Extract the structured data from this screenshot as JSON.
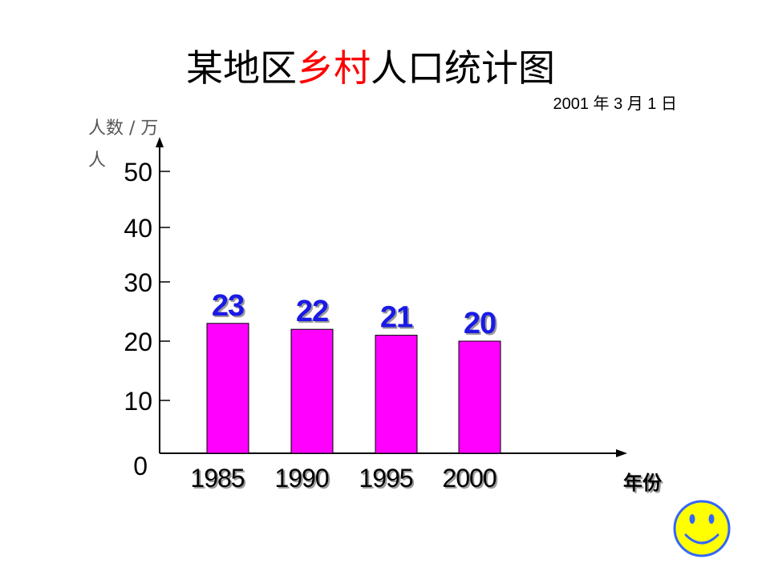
{
  "title": {
    "part1": "某地区",
    "highlight": "乡村",
    "part2": "人口统计图"
  },
  "date": "2001 年 3 月 1 日",
  "smiley": "smiley-face-icon",
  "colors": {
    "bar": "#ff00ff",
    "value_label": "#1a1ae6",
    "title_highlight": "#ff0000",
    "smiley_fill": "#ffff00",
    "smiley_outline": "#3366ff"
  },
  "chart_data": {
    "type": "bar",
    "categories": [
      "1985",
      "1990",
      "1995",
      "2000"
    ],
    "values": [
      23,
      22,
      21,
      20
    ],
    "value_labels": [
      "23",
      "22",
      "21",
      "20"
    ],
    "yticks": [
      0,
      10,
      20,
      30,
      40,
      50
    ],
    "ylim": [
      0,
      50
    ],
    "ylabel_line1": "人数 / 万",
    "ylabel_line2": "人",
    "xlabel": "年份",
    "grid": false,
    "legend": "none"
  }
}
